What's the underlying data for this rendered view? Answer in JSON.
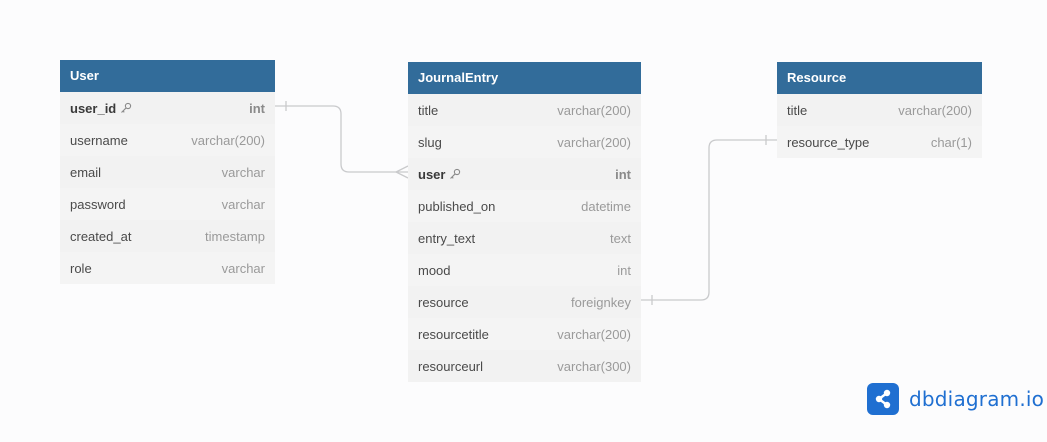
{
  "colors": {
    "header": "#326c9a",
    "link": "#c9cacc",
    "brand": "#1f6fd1"
  },
  "tables": [
    {
      "name": "User",
      "fields": [
        {
          "name": "user_id",
          "type": "int",
          "key": true
        },
        {
          "name": "username",
          "type": "varchar(200)",
          "key": false
        },
        {
          "name": "email",
          "type": "varchar",
          "key": false
        },
        {
          "name": "password",
          "type": "varchar",
          "key": false
        },
        {
          "name": "created_at",
          "type": "timestamp",
          "key": false
        },
        {
          "name": "role",
          "type": "varchar",
          "key": false
        }
      ]
    },
    {
      "name": "JournalEntry",
      "fields": [
        {
          "name": "title",
          "type": "varchar(200)",
          "key": false
        },
        {
          "name": "slug",
          "type": "varchar(200)",
          "key": false
        },
        {
          "name": "user",
          "type": "int",
          "key": true
        },
        {
          "name": "published_on",
          "type": "datetime",
          "key": false
        },
        {
          "name": "entry_text",
          "type": "text",
          "key": false
        },
        {
          "name": "mood",
          "type": "int",
          "key": false
        },
        {
          "name": "resource",
          "type": "foreignkey",
          "key": false
        },
        {
          "name": "resourcetitle",
          "type": "varchar(200)",
          "key": false
        },
        {
          "name": "resourceurl",
          "type": "varchar(300)",
          "key": false
        }
      ]
    },
    {
      "name": "Resource",
      "fields": [
        {
          "name": "title",
          "type": "varchar(200)",
          "key": false
        },
        {
          "name": "resource_type",
          "type": "char(1)",
          "key": false
        }
      ]
    }
  ],
  "relationships": [
    {
      "from_table": "User",
      "from_field": "user_id",
      "to_table": "JournalEntry",
      "to_field": "user",
      "from_end": "one",
      "to_end": "many"
    },
    {
      "from_table": "JournalEntry",
      "from_field": "resource",
      "to_table": "Resource",
      "to_field": "resource_type",
      "from_end": "one",
      "to_end": "one"
    }
  ],
  "logo": {
    "text": "dbdiagram.io",
    "icon": "share-nodes-icon"
  }
}
